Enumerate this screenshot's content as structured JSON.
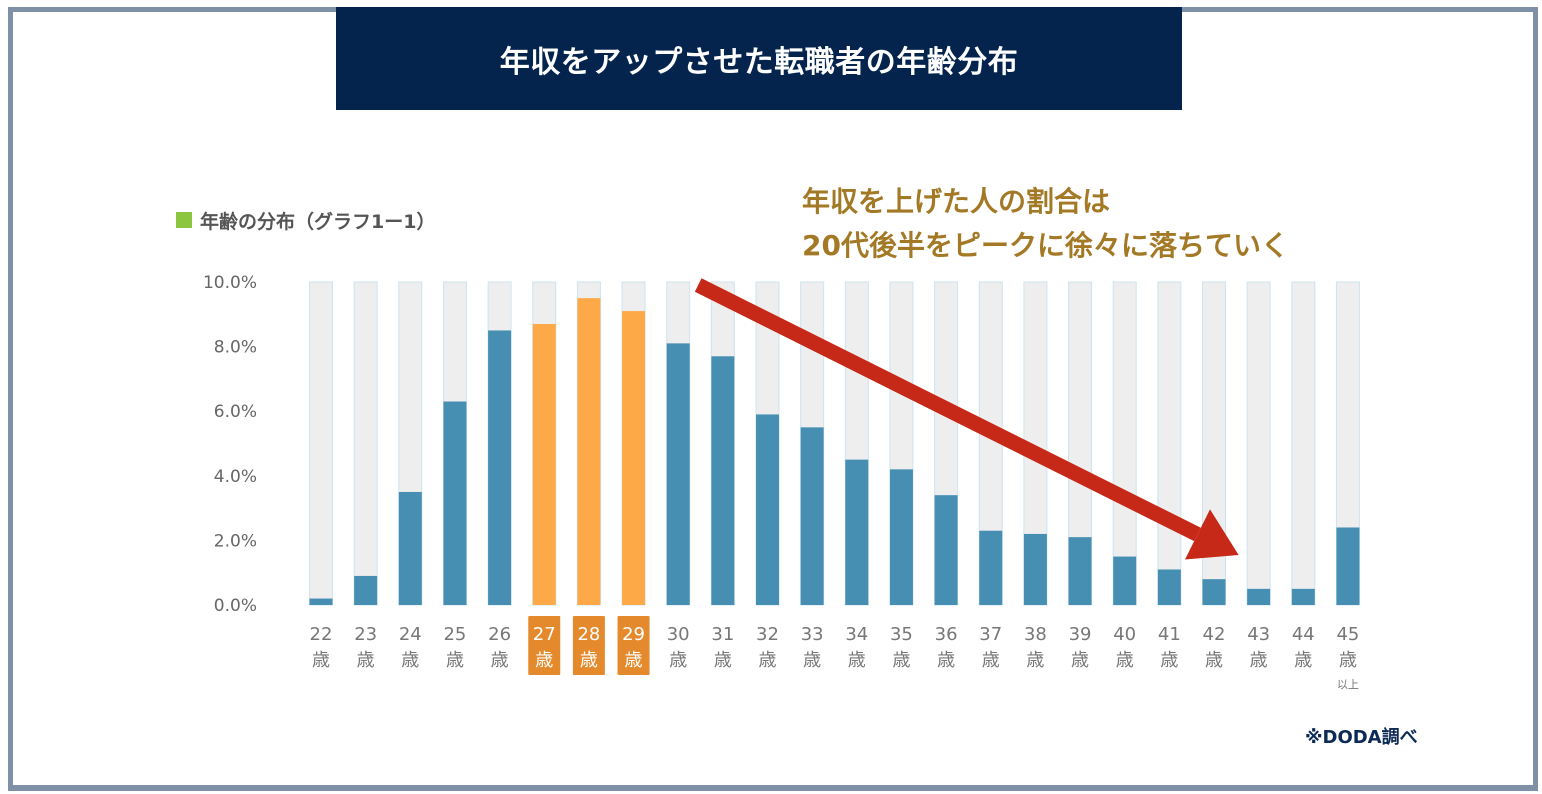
{
  "title": "年収をアップさせた転職者の年齢分布",
  "legend": {
    "label": "年齢の分布（グラフ1ー1）",
    "color": "#8cc63f"
  },
  "annotation": {
    "line1": "年収を上げた人の割合は",
    "line2": "20代後半をピークに徐々に落ちていく"
  },
  "source": "※DODA調べ",
  "colors": {
    "banner": "#04244e",
    "bar_default": "#468fb3",
    "bar_highlight": "#fda947",
    "label_highlight_bg": "#e58a2c",
    "bar_track": "#eeeeee",
    "bar_track_border": "#cde4f0",
    "arrow": "#c62918",
    "annotation_text": "#a37926"
  },
  "chart_data": {
    "type": "bar",
    "title": "年収をアップさせた転職者の年齢分布",
    "xlabel": "",
    "ylabel": "",
    "ylim": [
      0,
      10
    ],
    "yticks": [
      "0.0%",
      "2.0%",
      "4.0%",
      "6.0%",
      "8.0%",
      "10.0%"
    ],
    "categories": [
      "22",
      "23",
      "24",
      "25",
      "26",
      "27",
      "28",
      "29",
      "30",
      "31",
      "32",
      "33",
      "34",
      "35",
      "36",
      "37",
      "38",
      "39",
      "40",
      "41",
      "42",
      "43",
      "44",
      "45"
    ],
    "category_suffix": "歳",
    "last_category_note": "以上",
    "values": [
      0.2,
      0.9,
      3.5,
      6.3,
      8.5,
      8.7,
      9.5,
      9.1,
      8.1,
      7.7,
      5.9,
      5.5,
      4.5,
      4.2,
      3.4,
      2.3,
      2.2,
      2.1,
      1.5,
      1.1,
      0.8,
      0.5,
      0.5,
      2.4
    ],
    "highlighted": [
      "27",
      "28",
      "29"
    ],
    "series_name": "年齢の分布（グラフ1ー1）",
    "grid": false,
    "legend_position": "top-left",
    "annotation_arrow": {
      "from_category": "30",
      "to_category": "43",
      "direction": "down-right"
    }
  }
}
